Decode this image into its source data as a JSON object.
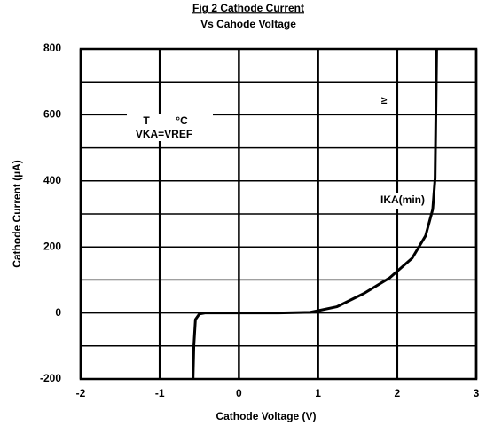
{
  "chart_data": {
    "type": "line",
    "title": "Fig 2 Cathode Current",
    "subtitle": "Vs Cahode Voltage",
    "xlabel": "Cathode Voltage   (V)",
    "ylabel": "Cathode Current (µA)",
    "xlim": [
      -2,
      3
    ],
    "xticks": [
      -2,
      -1,
      0,
      1,
      2,
      3
    ],
    "ylim": [
      -200,
      800
    ],
    "yticks": [
      -200,
      0,
      200,
      400,
      600,
      800
    ],
    "y_minor_ticks": [
      -100,
      100,
      300,
      500,
      700
    ],
    "grid": true,
    "x": [
      -0.58,
      -0.57,
      -0.55,
      -0.5,
      -0.43,
      0,
      0.5,
      0.9,
      1.24,
      1.58,
      1.91,
      2.19,
      2.36,
      2.45,
      2.48,
      2.5
    ],
    "series": [
      {
        "color": "#000000",
        "values": [
          -200,
          -100,
          -20,
          -3,
          0,
          0,
          0,
          2,
          19,
          59,
          107,
          166,
          234,
          314,
          408,
          800
        ]
      }
    ],
    "annotations": [
      "T",
      "°C",
      "VKA=VREF",
      "≥",
      "IKA(min)"
    ]
  }
}
